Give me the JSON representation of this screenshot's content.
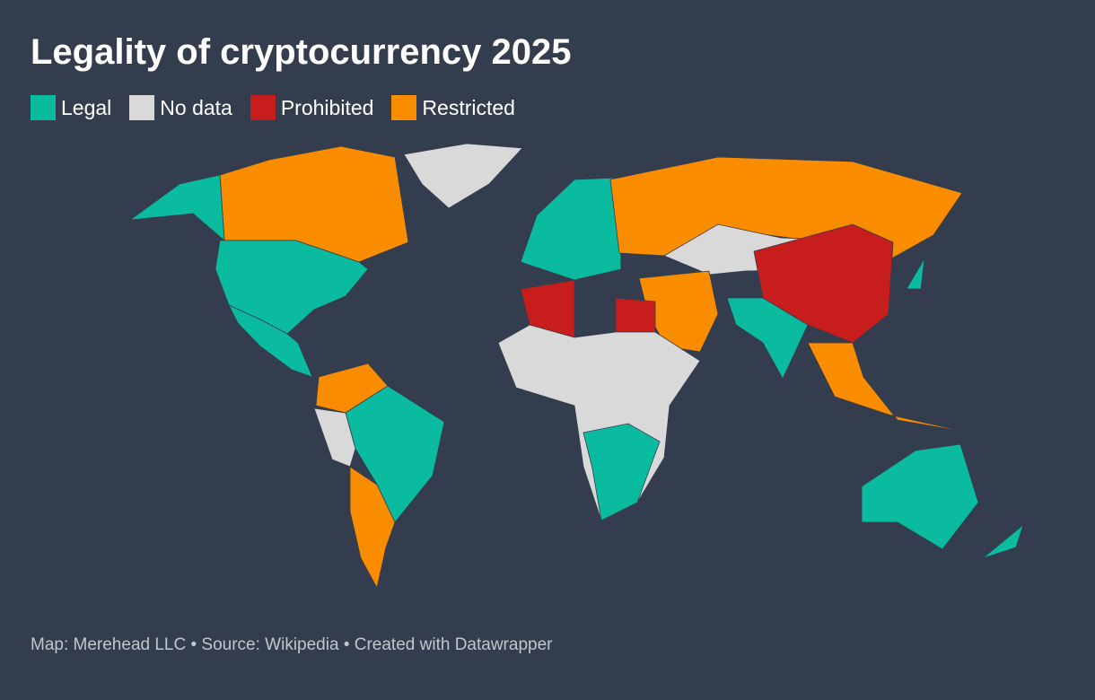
{
  "header": {
    "title": "Legality of cryptocurrency 2025"
  },
  "legend": [
    {
      "label": "Legal",
      "color": "#0bbb9f"
    },
    {
      "label": "No data",
      "color": "#d9d9d9"
    },
    {
      "label": "Prohibited",
      "color": "#c71e1d"
    },
    {
      "label": "Restricted",
      "color": "#fa8c00"
    }
  ],
  "footer": {
    "text": "Map: Merehead LLC • Source: Wikipedia • Created with Datawrapper"
  }
}
